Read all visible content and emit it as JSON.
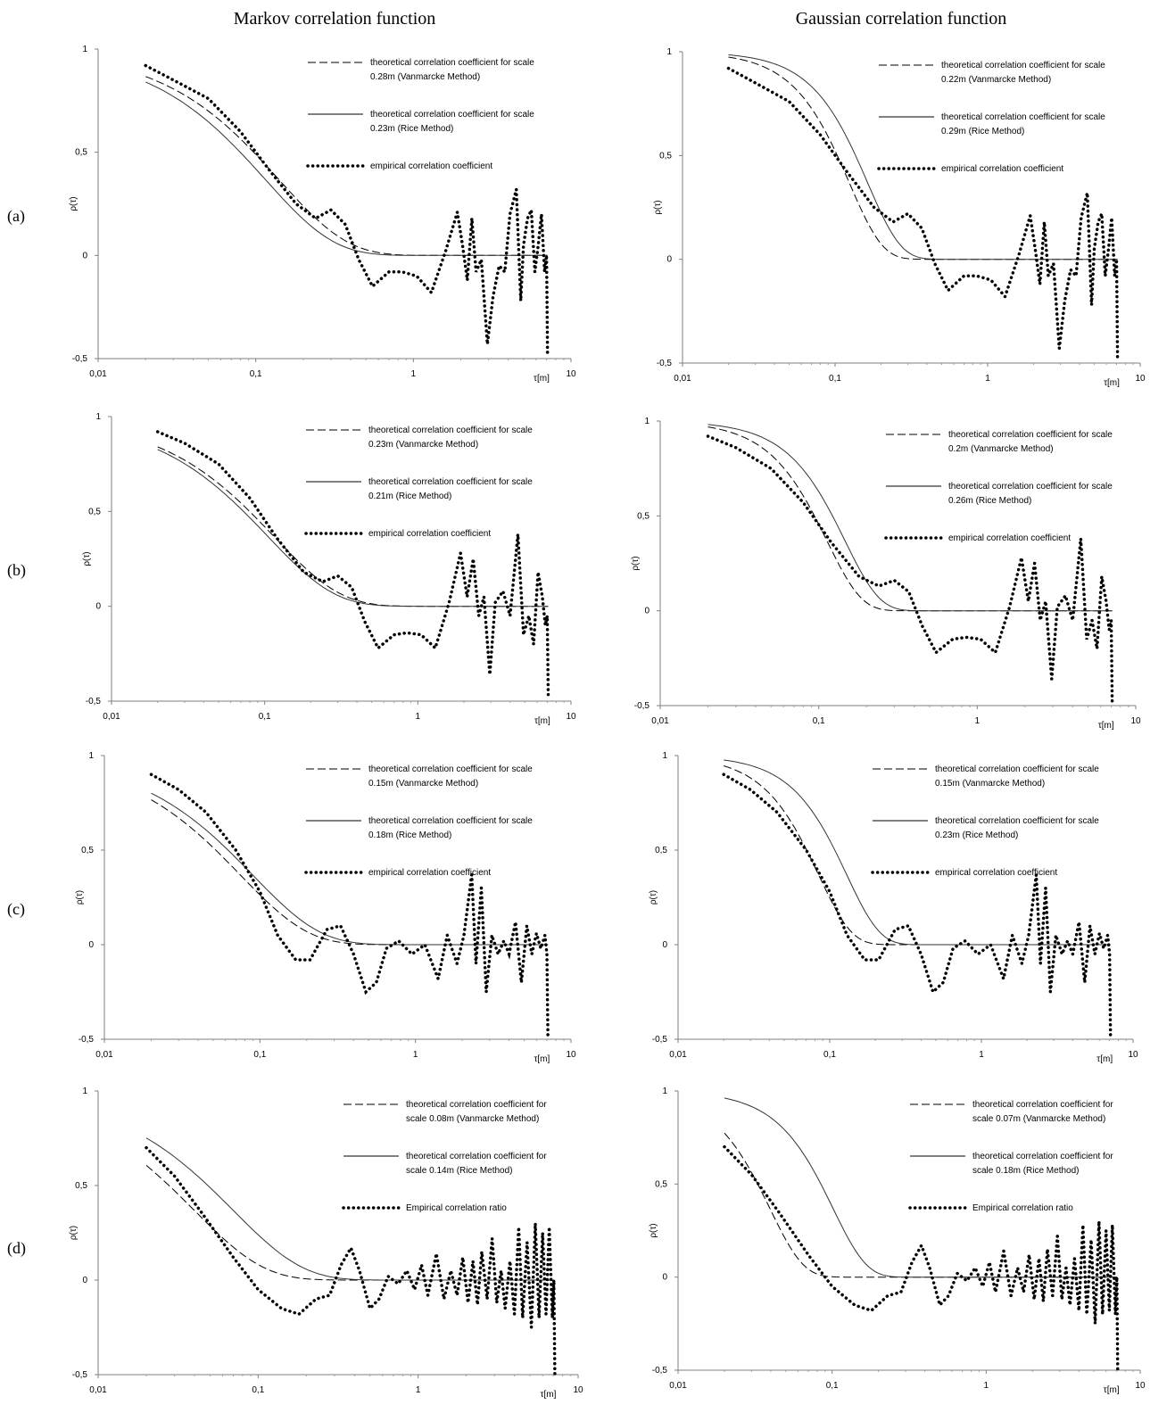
{
  "column_titles": [
    "Markov correlation function",
    "Gaussian correlation function"
  ],
  "row_labels": [
    "(a)",
    "(b)",
    "(c)",
    "(d)"
  ],
  "chart_data": [
    {
      "id": "a-markov",
      "type": "line",
      "model": "markov",
      "xscale": "log",
      "xlim": [
        0.01,
        10
      ],
      "ylim": [
        -0.5,
        1
      ],
      "xticks": [
        "0,01",
        "0,1",
        "1",
        "10"
      ],
      "yticks": [
        "-0,5",
        "0",
        "0,5",
        "1"
      ],
      "xlabel": "τ[m]",
      "ylabel": "ρ(τ)",
      "series": [
        {
          "name": "theoretical correlation coefficient  for scale",
          "name2": "0.28m (Vanmarcke Method)",
          "style": "dashed",
          "scale": 0.28
        },
        {
          "name": "theoretical correlation coefficient  for scale",
          "name2": "0.23m (Rice  Method)",
          "style": "solid",
          "scale": 0.23
        },
        {
          "name": "empirical correlation coefficient",
          "name2": "",
          "style": "dotted",
          "x": [
            0.02,
            0.03,
            0.05,
            0.08,
            0.12,
            0.18,
            0.24,
            0.3,
            0.37,
            0.45,
            0.55,
            0.7,
            0.85,
            1.05,
            1.3,
            1.6,
            1.9,
            2.05,
            2.2,
            2.35,
            2.5,
            2.7,
            2.95,
            3.2,
            3.5,
            3.8,
            4.1,
            4.5,
            4.8,
            5.0,
            5.3,
            5.6,
            5.9,
            6.2,
            6.5,
            6.8,
            7.0,
            7.1
          ],
          "y": [
            0.92,
            0.85,
            0.76,
            0.6,
            0.42,
            0.25,
            0.18,
            0.22,
            0.15,
            -0.02,
            -0.15,
            -0.08,
            -0.08,
            -0.1,
            -0.18,
            0.02,
            0.21,
            0.05,
            -0.12,
            0.18,
            -0.08,
            -0.02,
            -0.43,
            -0.2,
            -0.05,
            -0.08,
            0.2,
            0.32,
            -0.22,
            0.05,
            0.18,
            0.22,
            -0.08,
            0.05,
            0.2,
            -0.08,
            0.0,
            -0.48
          ]
        }
      ]
    },
    {
      "id": "a-gauss",
      "type": "line",
      "model": "gaussian",
      "xscale": "log",
      "xlim": [
        0.01,
        10
      ],
      "ylim": [
        -0.5,
        1
      ],
      "xticks": [
        "0,01",
        "0,1",
        "1",
        "10"
      ],
      "yticks": [
        "-0,5",
        "0",
        "0,5",
        "1"
      ],
      "xlabel": "τ[m]",
      "ylabel": "ρ(τ)",
      "series": [
        {
          "name": "theoretical correlation coefficient  for scale",
          "name2": "0.22m (Vanmarcke Method)",
          "style": "dashed",
          "scale": 0.22
        },
        {
          "name": "theoretical correlation coefficient  for scale",
          "name2": "0.29m (Rice  Method)",
          "style": "solid",
          "scale": 0.29
        },
        {
          "name": "empirical correlation coefficient",
          "name2": "",
          "style": "dotted",
          "x": [
            0.02,
            0.03,
            0.05,
            0.08,
            0.12,
            0.18,
            0.24,
            0.3,
            0.37,
            0.45,
            0.55,
            0.7,
            0.85,
            1.05,
            1.3,
            1.6,
            1.9,
            2.05,
            2.2,
            2.35,
            2.5,
            2.7,
            2.95,
            3.2,
            3.5,
            3.8,
            4.1,
            4.5,
            4.8,
            5.0,
            5.3,
            5.6,
            5.9,
            6.2,
            6.5,
            6.8,
            7.0,
            7.1
          ],
          "y": [
            0.92,
            0.85,
            0.76,
            0.6,
            0.42,
            0.25,
            0.18,
            0.22,
            0.15,
            -0.02,
            -0.15,
            -0.08,
            -0.08,
            -0.1,
            -0.18,
            0.02,
            0.21,
            0.05,
            -0.12,
            0.18,
            -0.08,
            -0.02,
            -0.43,
            -0.2,
            -0.05,
            -0.08,
            0.2,
            0.32,
            -0.22,
            0.05,
            0.18,
            0.22,
            -0.08,
            0.05,
            0.2,
            -0.08,
            0.0,
            -0.48
          ]
        }
      ]
    },
    {
      "id": "b-markov",
      "type": "line",
      "model": "markov",
      "xscale": "log",
      "xlim": [
        0.01,
        10
      ],
      "ylim": [
        -0.5,
        1
      ],
      "xticks": [
        "0,01",
        "0,1",
        "1",
        "10"
      ],
      "yticks": [
        "-0,5",
        "0",
        "0,5",
        "1"
      ],
      "xlabel": "τ[m]",
      "ylabel": "ρ(τ)",
      "series": [
        {
          "name": "theoretical correlation coefficient  for scale",
          "name2": "0.23m (Vanmarcke Method)",
          "style": "dashed",
          "scale": 0.23
        },
        {
          "name": "theoretical correlation coefficient  for scale",
          "name2": "0.21m (Rice  Method)",
          "style": "solid",
          "scale": 0.21
        },
        {
          "name": "empirical correlation coefficient",
          "name2": "",
          "style": "dotted",
          "x": [
            0.02,
            0.03,
            0.05,
            0.08,
            0.12,
            0.18,
            0.24,
            0.3,
            0.37,
            0.45,
            0.55,
            0.7,
            0.85,
            1.05,
            1.3,
            1.6,
            1.9,
            2.1,
            2.3,
            2.5,
            2.7,
            2.95,
            3.2,
            3.6,
            4.0,
            4.5,
            4.9,
            5.3,
            5.7,
            6.1,
            6.5,
            6.8,
            7.0,
            7.1
          ],
          "y": [
            0.92,
            0.86,
            0.75,
            0.57,
            0.36,
            0.18,
            0.13,
            0.16,
            0.1,
            -0.08,
            -0.22,
            -0.15,
            -0.14,
            -0.15,
            -0.22,
            0.02,
            0.28,
            0.05,
            0.25,
            -0.05,
            0.05,
            -0.36,
            0.02,
            0.08,
            -0.05,
            0.38,
            -0.15,
            -0.05,
            -0.2,
            0.18,
            0.05,
            -0.1,
            -0.05,
            -0.48
          ]
        }
      ]
    },
    {
      "id": "b-gauss",
      "type": "line",
      "model": "gaussian",
      "xscale": "log",
      "xlim": [
        0.01,
        10
      ],
      "ylim": [
        -0.5,
        1
      ],
      "xticks": [
        "0,01",
        "0,1",
        "1",
        "10"
      ],
      "yticks": [
        "-0,5",
        "0",
        "0,5",
        "1"
      ],
      "xlabel": "τ[m]",
      "ylabel": "ρ(τ)",
      "series": [
        {
          "name": "theoretical correlation coefficient  for scale",
          "name2": "0.2m (Vanmarcke Method)",
          "style": "dashed",
          "scale": 0.2
        },
        {
          "name": "theoretical correlation coefficient  for scale",
          "name2": "0.26m (Rice  Method)",
          "style": "solid",
          "scale": 0.26
        },
        {
          "name": "empirical correlation coefficient",
          "name2": "",
          "style": "dotted",
          "x": [
            0.02,
            0.03,
            0.05,
            0.08,
            0.12,
            0.18,
            0.24,
            0.3,
            0.37,
            0.45,
            0.55,
            0.7,
            0.85,
            1.05,
            1.3,
            1.6,
            1.9,
            2.1,
            2.3,
            2.5,
            2.7,
            2.95,
            3.2,
            3.6,
            4.0,
            4.5,
            4.9,
            5.3,
            5.7,
            6.1,
            6.5,
            6.8,
            7.0,
            7.1
          ],
          "y": [
            0.92,
            0.86,
            0.75,
            0.57,
            0.36,
            0.18,
            0.13,
            0.16,
            0.1,
            -0.08,
            -0.22,
            -0.15,
            -0.14,
            -0.15,
            -0.22,
            0.02,
            0.28,
            0.05,
            0.25,
            -0.05,
            0.05,
            -0.36,
            0.02,
            0.08,
            -0.05,
            0.38,
            -0.15,
            -0.05,
            -0.2,
            0.18,
            0.05,
            -0.1,
            -0.05,
            -0.48
          ]
        }
      ]
    },
    {
      "id": "c-markov",
      "type": "line",
      "model": "markov",
      "xscale": "log",
      "xlim": [
        0.01,
        10
      ],
      "ylim": [
        -0.5,
        1
      ],
      "xticks": [
        "0,01",
        "0,1",
        "1",
        "10"
      ],
      "yticks": [
        "-0,5",
        "0",
        "0,5",
        "1"
      ],
      "xlabel": "τ[m]",
      "ylabel": "ρ(τ)",
      "series": [
        {
          "name": "theoretical correlation coefficient  for scale",
          "name2": "0.15m (Vanmarcke Method)",
          "style": "dashed",
          "scale": 0.15
        },
        {
          "name": "theoretical correlation coefficient  for scale",
          "name2": "0.18m (Rice  Method)",
          "style": "solid",
          "scale": 0.18
        },
        {
          "name": "empirical correlation coefficient",
          "name2": "",
          "style": "dotted",
          "x": [
            0.02,
            0.03,
            0.045,
            0.07,
            0.1,
            0.13,
            0.17,
            0.21,
            0.27,
            0.33,
            0.4,
            0.48,
            0.56,
            0.65,
            0.78,
            0.95,
            1.15,
            1.4,
            1.6,
            1.85,
            2.05,
            2.3,
            2.45,
            2.65,
            2.85,
            3.1,
            3.4,
            3.7,
            4.0,
            4.4,
            4.8,
            5.2,
            5.6,
            6.0,
            6.4,
            6.8,
            7.0,
            7.1
          ],
          "y": [
            0.9,
            0.82,
            0.7,
            0.5,
            0.28,
            0.05,
            -0.08,
            -0.08,
            0.08,
            0.1,
            -0.05,
            -0.25,
            -0.2,
            -0.02,
            0.02,
            -0.05,
            0.0,
            -0.18,
            0.05,
            -0.1,
            0.05,
            0.37,
            -0.1,
            0.3,
            -0.25,
            0.05,
            -0.05,
            0.02,
            -0.05,
            0.12,
            -0.2,
            0.1,
            -0.05,
            0.06,
            -0.02,
            0.05,
            -0.05,
            -0.48
          ]
        }
      ]
    },
    {
      "id": "c-gauss",
      "type": "line",
      "model": "gaussian",
      "xscale": "log",
      "xlim": [
        0.01,
        10
      ],
      "ylim": [
        -0.5,
        1
      ],
      "xticks": [
        "0,01",
        "0,1",
        "1",
        "10"
      ],
      "yticks": [
        "-0,5",
        "0",
        "0,5",
        "1"
      ],
      "xlabel": "τ[m]",
      "ylabel": "ρ(τ)",
      "series": [
        {
          "name": "theoretical correlation coefficient  for scale",
          "name2": "0.15m (Vanmarcke Method)",
          "style": "dashed",
          "scale": 0.15
        },
        {
          "name": "theoretical correlation coefficient  for scale",
          "name2": "0.23m (Rice  Method)",
          "style": "solid",
          "scale": 0.23
        },
        {
          "name": "empirical correlation coefficient",
          "name2": "",
          "style": "dotted",
          "x": [
            0.02,
            0.03,
            0.045,
            0.07,
            0.1,
            0.13,
            0.17,
            0.21,
            0.27,
            0.33,
            0.4,
            0.48,
            0.56,
            0.65,
            0.78,
            0.95,
            1.15,
            1.4,
            1.6,
            1.85,
            2.05,
            2.3,
            2.45,
            2.65,
            2.85,
            3.1,
            3.4,
            3.7,
            4.0,
            4.4,
            4.8,
            5.2,
            5.6,
            6.0,
            6.4,
            6.8,
            7.0,
            7.1
          ],
          "y": [
            0.9,
            0.82,
            0.7,
            0.5,
            0.28,
            0.05,
            -0.08,
            -0.08,
            0.08,
            0.1,
            -0.05,
            -0.25,
            -0.2,
            -0.02,
            0.02,
            -0.05,
            0.0,
            -0.18,
            0.05,
            -0.1,
            0.05,
            0.37,
            -0.1,
            0.3,
            -0.25,
            0.05,
            -0.05,
            0.02,
            -0.05,
            0.12,
            -0.2,
            0.1,
            -0.05,
            0.06,
            -0.02,
            0.05,
            -0.05,
            -0.48
          ]
        }
      ]
    },
    {
      "id": "d-markov",
      "type": "line",
      "model": "markov",
      "xscale": "log",
      "xlim": [
        0.01,
        10
      ],
      "ylim": [
        -0.5,
        1
      ],
      "xticks": [
        "0,01",
        "0,1",
        "1",
        "10"
      ],
      "yticks": [
        "-0,5",
        "0",
        "0,5",
        "1"
      ],
      "xlabel": "τ[m]",
      "ylabel": "ρ(τ)",
      "series": [
        {
          "name": "theoretical correlation coefficient  for",
          "name2": "scale 0.08m (Vanmarcke Method)",
          "style": "dashed",
          "scale": 0.08
        },
        {
          "name": "theoretical correlation coefficient  for",
          "name2": "scale 0.14m (Rice  Method)",
          "style": "solid",
          "scale": 0.14
        },
        {
          "name": "Empirical correlation ratio",
          "name2": "",
          "style": "dotted",
          "x": [
            0.02,
            0.03,
            0.045,
            0.07,
            0.1,
            0.14,
            0.18,
            0.23,
            0.28,
            0.33,
            0.38,
            0.43,
            0.5,
            0.57,
            0.65,
            0.75,
            0.85,
            0.95,
            1.05,
            1.15,
            1.3,
            1.45,
            1.6,
            1.75,
            1.9,
            2.05,
            2.2,
            2.35,
            2.5,
            2.7,
            2.9,
            3.1,
            3.3,
            3.5,
            3.75,
            4.0,
            4.25,
            4.5,
            4.8,
            5.1,
            5.4,
            5.7,
            6.0,
            6.3,
            6.6,
            6.9,
            7.05,
            7.15
          ],
          "y": [
            0.7,
            0.55,
            0.35,
            0.12,
            -0.05,
            -0.15,
            -0.18,
            -0.1,
            -0.08,
            0.08,
            0.17,
            0.05,
            -0.15,
            -0.1,
            0.02,
            -0.02,
            0.05,
            -0.05,
            0.08,
            -0.08,
            0.14,
            -0.1,
            0.05,
            -0.08,
            0.12,
            -0.12,
            0.1,
            -0.13,
            0.15,
            -0.1,
            0.22,
            -0.12,
            0.05,
            -0.15,
            0.1,
            -0.18,
            0.28,
            -0.2,
            0.2,
            -0.25,
            0.3,
            -0.2,
            0.25,
            -0.18,
            0.28,
            -0.2,
            0.0,
            -0.5
          ]
        }
      ]
    },
    {
      "id": "d-gauss",
      "type": "line",
      "model": "gaussian",
      "xscale": "log",
      "xlim": [
        0.01,
        10
      ],
      "ylim": [
        -0.5,
        1
      ],
      "xticks": [
        "0,01",
        "0,1",
        "1",
        "10"
      ],
      "yticks": [
        "-0,5",
        "0",
        "0,5",
        "1"
      ],
      "xlabel": "τ[m]",
      "ylabel": "ρ(τ)",
      "series": [
        {
          "name": "theoretical correlation coefficient  for",
          "name2": "scale 0.07m (Vanmarcke Method)",
          "style": "dashed",
          "scale": 0.07
        },
        {
          "name": "theoretical correlation coefficient  for",
          "name2": "scale 0.18m (Rice  Method)",
          "style": "solid",
          "scale": 0.18
        },
        {
          "name": "Empirical correlation ratio",
          "name2": "",
          "style": "dotted",
          "x": [
            0.02,
            0.03,
            0.045,
            0.07,
            0.1,
            0.14,
            0.18,
            0.23,
            0.28,
            0.33,
            0.38,
            0.43,
            0.5,
            0.57,
            0.65,
            0.75,
            0.85,
            0.95,
            1.05,
            1.15,
            1.3,
            1.45,
            1.6,
            1.75,
            1.9,
            2.05,
            2.2,
            2.35,
            2.5,
            2.7,
            2.9,
            3.1,
            3.3,
            3.5,
            3.75,
            4.0,
            4.25,
            4.5,
            4.8,
            5.1,
            5.4,
            5.7,
            6.0,
            6.3,
            6.6,
            6.9,
            7.05,
            7.15
          ],
          "y": [
            0.7,
            0.55,
            0.35,
            0.12,
            -0.05,
            -0.15,
            -0.18,
            -0.1,
            -0.08,
            0.08,
            0.17,
            0.05,
            -0.15,
            -0.1,
            0.02,
            -0.02,
            0.05,
            -0.05,
            0.08,
            -0.08,
            0.14,
            -0.1,
            0.05,
            -0.08,
            0.12,
            -0.12,
            0.1,
            -0.13,
            0.15,
            -0.1,
            0.22,
            -0.12,
            0.05,
            -0.15,
            0.1,
            -0.18,
            0.28,
            -0.2,
            0.2,
            -0.25,
            0.3,
            -0.2,
            0.25,
            -0.18,
            0.28,
            -0.2,
            0.0,
            -0.5
          ]
        }
      ]
    }
  ]
}
